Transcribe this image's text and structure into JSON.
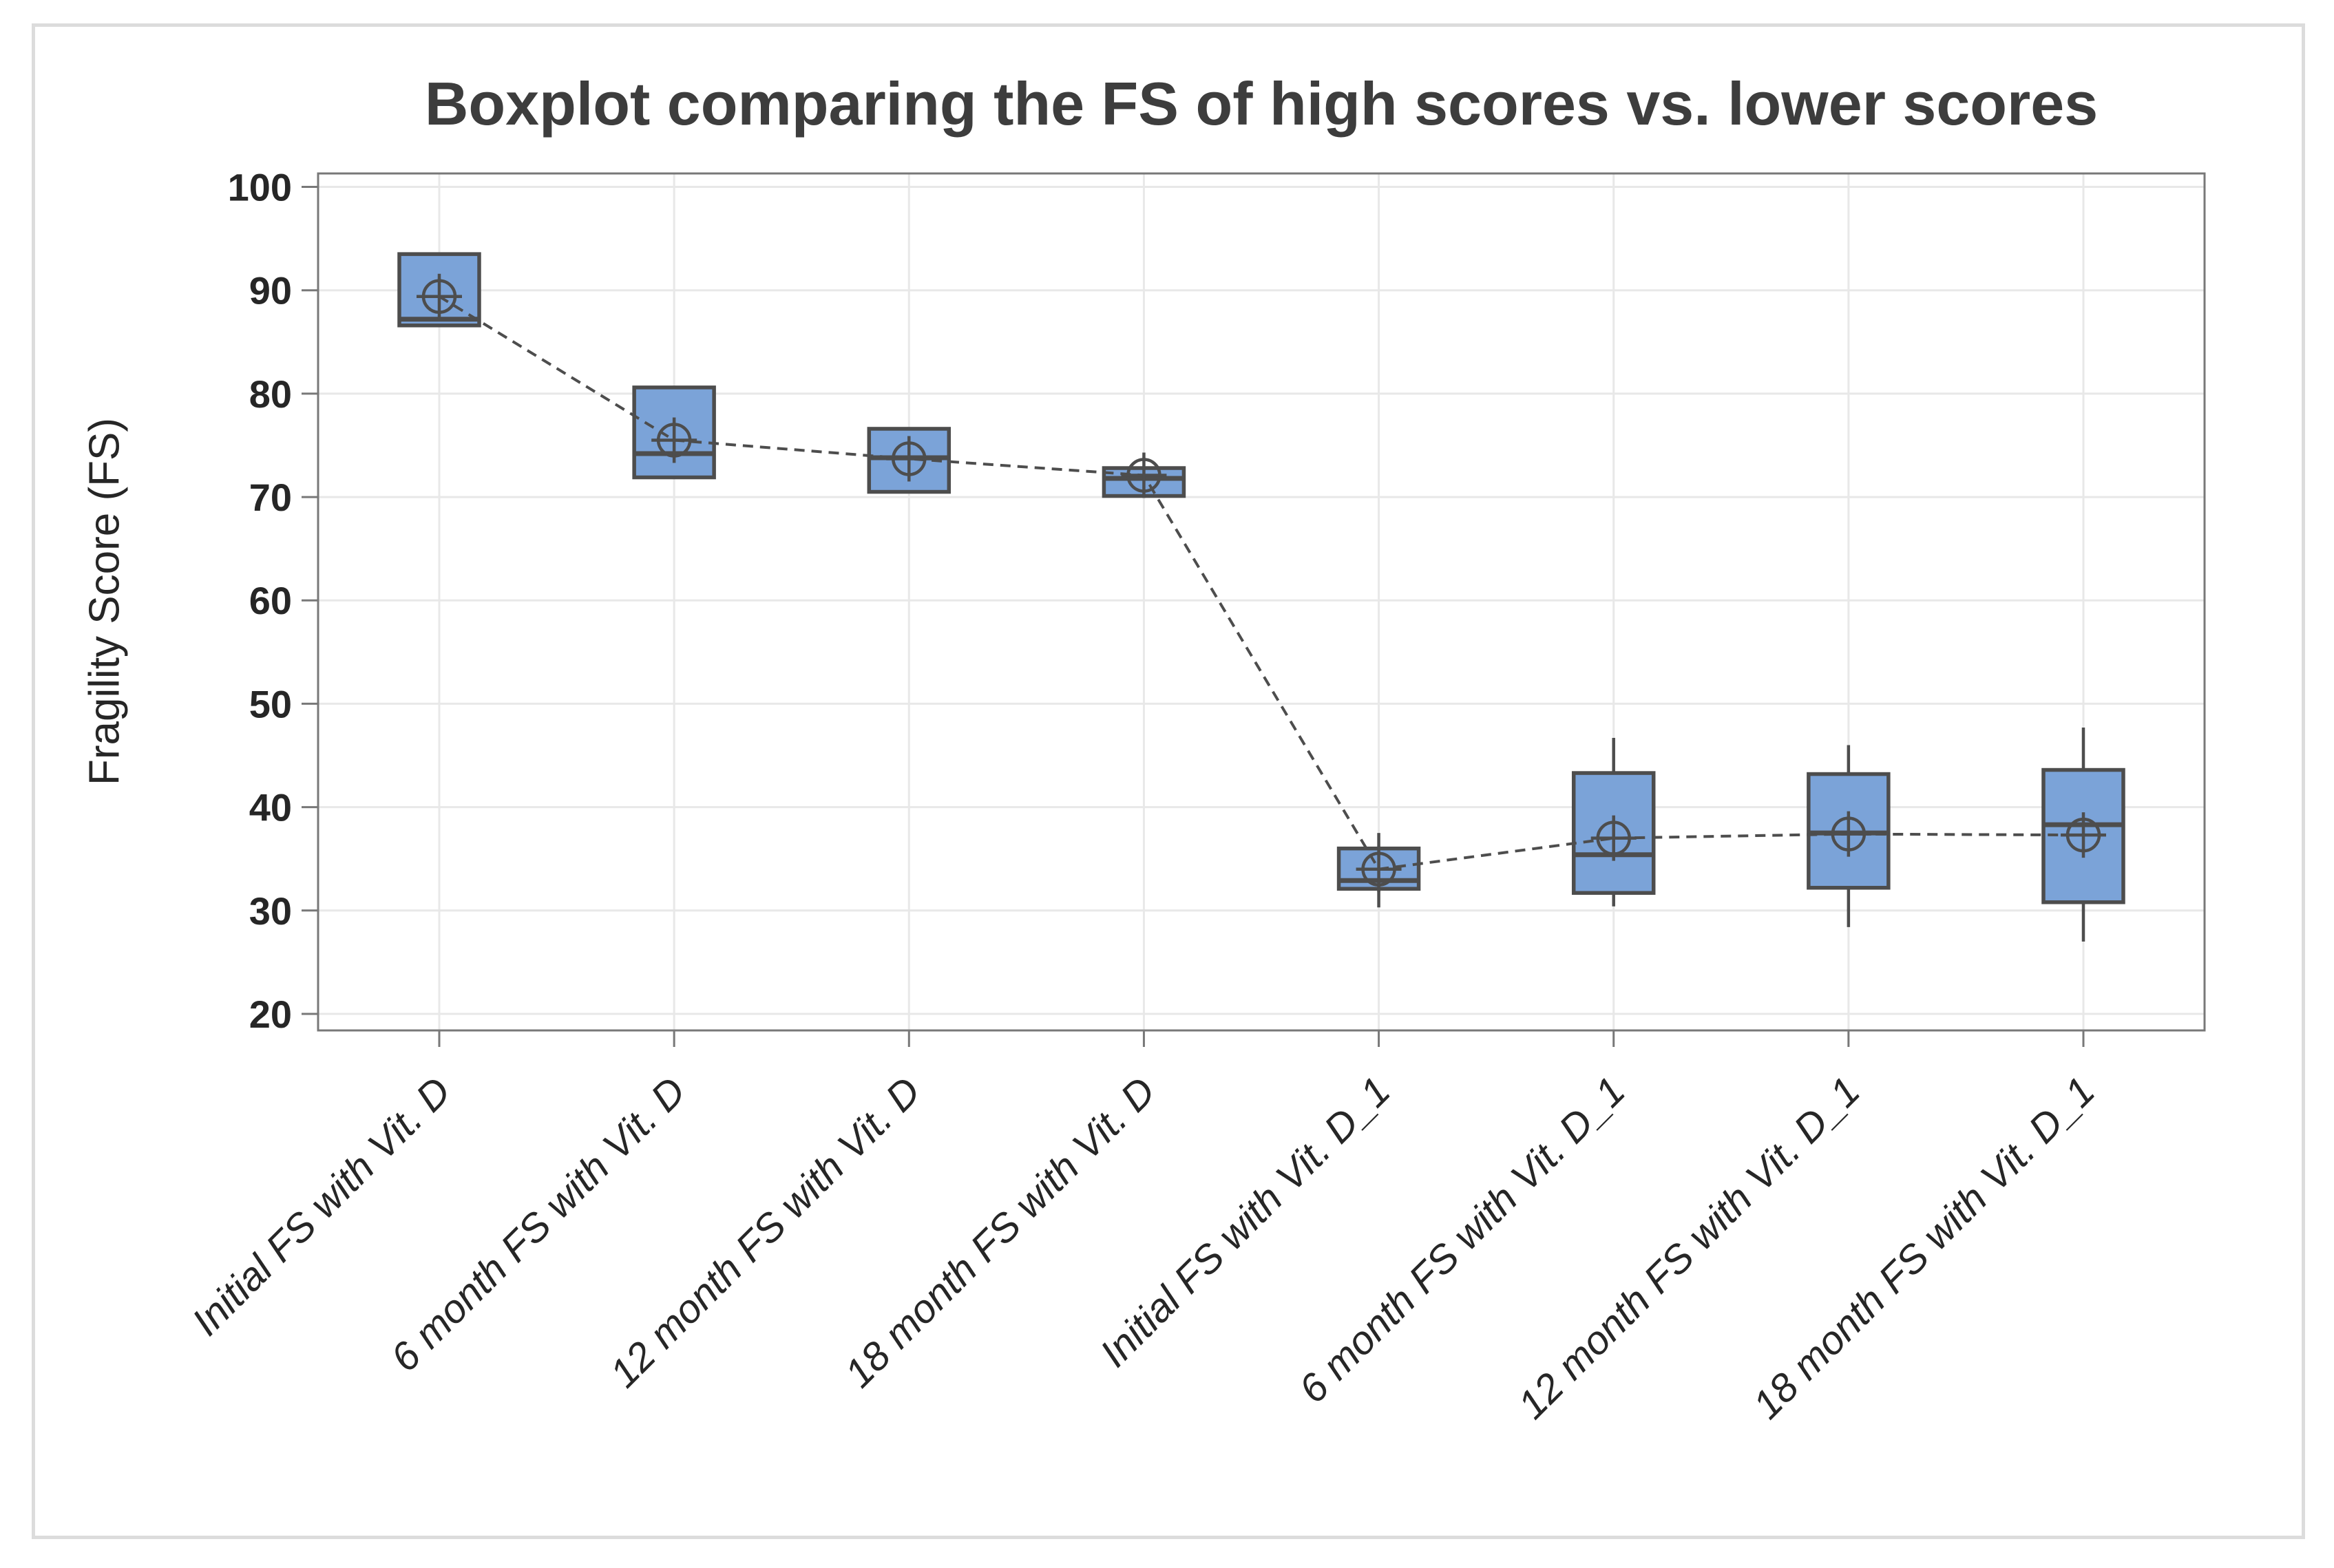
{
  "window": {
    "background_color": "#ffffff",
    "border_color": "#dcdcdc"
  },
  "chart": {
    "title": "Boxplot comparing the FS of high scores vs. lower scores",
    "y_axis_label": "Fragility Score (FS)"
  },
  "chart_data": {
    "type": "boxplot",
    "title": "Boxplot comparing the FS of high scores vs. lower scores",
    "xlabel": "",
    "ylabel": "Fragility Score (FS)",
    "ylim": [
      18.4,
      101.3
    ],
    "y_ticks": [
      100,
      90,
      80,
      70,
      60,
      50,
      40,
      30,
      20
    ],
    "grid": true,
    "legend": "none",
    "mean_connect_line": true,
    "categories": [
      "Initial FS with Vit. D",
      "6 month FS with Vit. D",
      "12 month FS with Vit. D",
      "18 month FS with Vit. D",
      "Initial FS with Vit. D_1",
      "6 month FS with Vit. D_1",
      "12 month FS with Vit. D_1",
      "18 month FS with Vit. D_1"
    ],
    "series": [
      {
        "name": "Initial FS with Vit. D",
        "whisker_low": 86.6,
        "q1": 86.6,
        "median": 87.2,
        "q3": 93.5,
        "whisker_high": 93.5,
        "mean": 89.4
      },
      {
        "name": "6 month FS with Vit. D",
        "whisker_low": 71.9,
        "q1": 71.9,
        "median": 74.2,
        "q3": 80.6,
        "whisker_high": 80.6,
        "mean": 75.5
      },
      {
        "name": "12 month FS with Vit. D",
        "whisker_low": 70.5,
        "q1": 70.5,
        "median": 73.8,
        "q3": 76.6,
        "whisker_high": 76.6,
        "mean": 73.7
      },
      {
        "name": "18 month FS with Vit. D",
        "whisker_low": 70.1,
        "q1": 70.1,
        "median": 71.8,
        "q3": 72.8,
        "whisker_high": 72.8,
        "mean": 72.1
      },
      {
        "name": "Initial FS with Vit. D_1",
        "whisker_low": 30.3,
        "q1": 32.1,
        "median": 32.9,
        "q3": 36.0,
        "whisker_high": 37.5,
        "mean": 34.0
      },
      {
        "name": "6 month FS with Vit. D_1",
        "whisker_low": 30.4,
        "q1": 31.7,
        "median": 35.4,
        "q3": 43.3,
        "whisker_high": 46.7,
        "mean": 37.0
      },
      {
        "name": "12 month FS with Vit. D_1",
        "whisker_low": 28.4,
        "q1": 32.2,
        "median": 37.5,
        "q3": 43.2,
        "whisker_high": 46.0,
        "mean": 37.4
      },
      {
        "name": "18 month FS with Vit. D_1",
        "whisker_low": 27.0,
        "q1": 30.8,
        "median": 38.3,
        "q3": 43.6,
        "whisker_high": 47.7,
        "mean": 37.3
      }
    ],
    "colors": {
      "box_fill": "#7ba3d8",
      "box_stroke": "#4d4d4d",
      "median": "#4d4d4d",
      "whisker": "#4d4d4d",
      "mean_marker": "#4d4d4d",
      "connect_line": "#4d4d4d",
      "gridline": "#e8e8e8",
      "frame": "#787878",
      "tick": "#787878",
      "tick_label": "#262626",
      "title": "#3d3d3d"
    }
  }
}
